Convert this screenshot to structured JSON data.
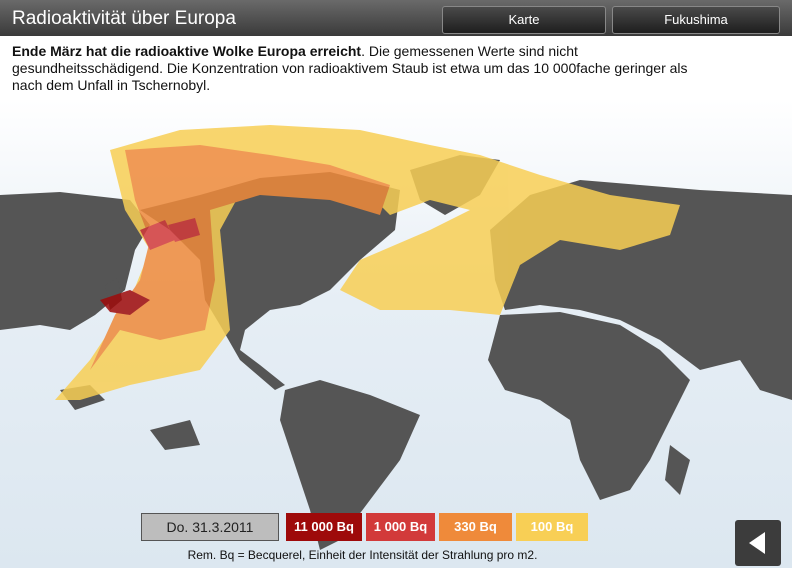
{
  "header": {
    "title": "Radioaktivität über Europa",
    "buttons": [
      "Karte",
      "Fukushima"
    ]
  },
  "description": {
    "bold": "Ende März hat die radioaktive Wolke Europa erreicht",
    "text": ". Die gemessenen Werte sind nicht gesundheitsschädigend. Die Konzentration von radioaktivem Staub ist etwa um das 10 000fache geringer als nach dem Unfall in Tschernobyl."
  },
  "legend": {
    "date": "Do. 31.3.2011",
    "levels": [
      {
        "label": "11 000 Bq",
        "color": "#9e0a0a"
      },
      {
        "label": "1 000 Bq",
        "color": "#d23a3a"
      },
      {
        "label": "330 Bq",
        "color": "#ef8a3a"
      },
      {
        "label": "100 Bq",
        "color": "#f8cf55"
      }
    ]
  },
  "note": "Rem. Bq = Becquerel, Einheit der Intensität der Strahlung pro m2."
}
